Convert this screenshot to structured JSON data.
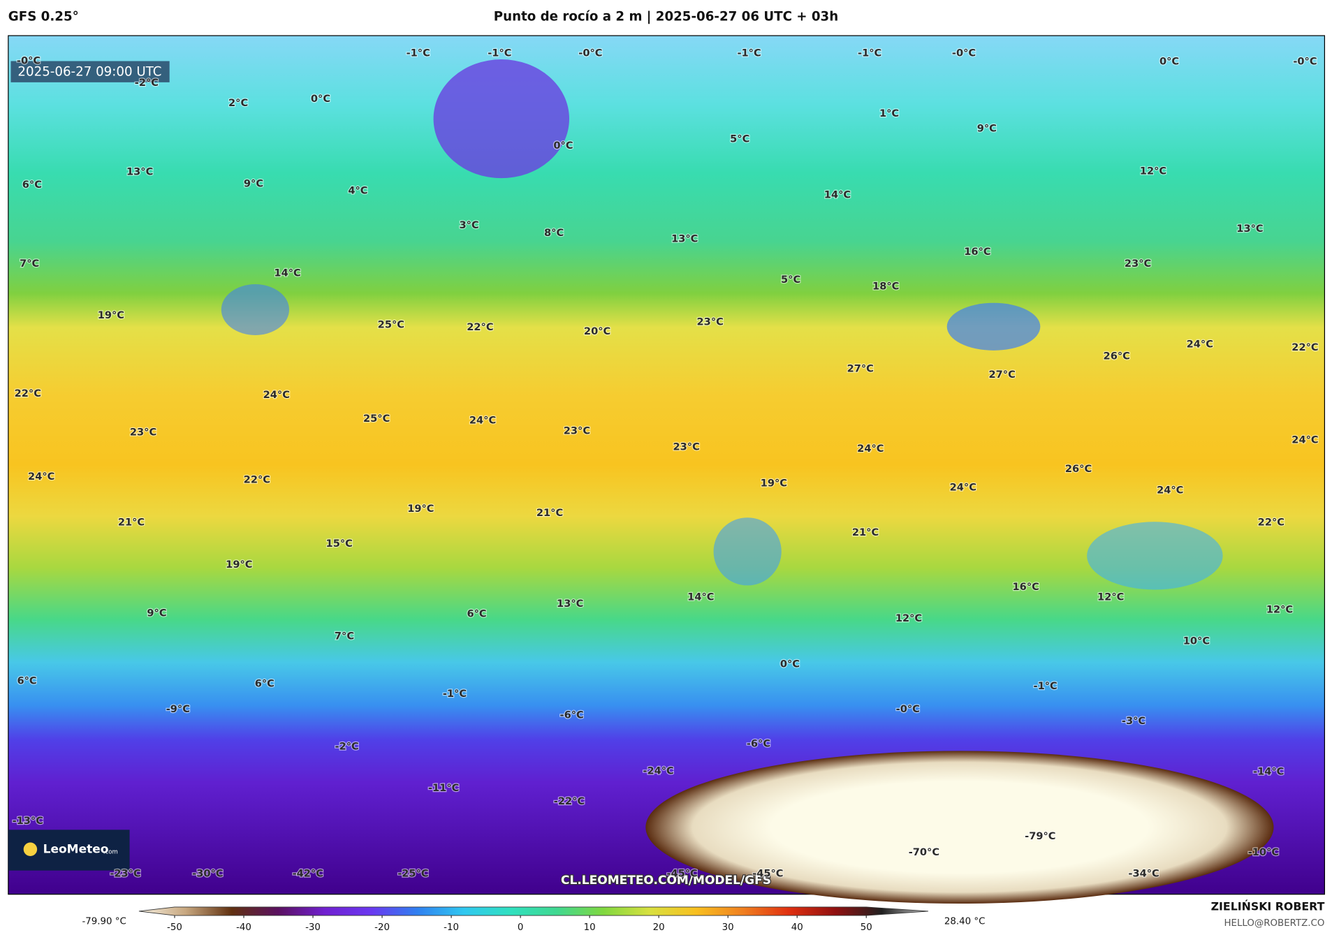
{
  "header": {
    "model": "GFS 0.25°",
    "title": "Punto de rocío a 2 m | 2025-06-27 06 UTC + 03h"
  },
  "map": {
    "timestamp": "2025-06-27 09:00 UTC",
    "watermark": "CL.LEOMETEO.COM/MODEL/GFS",
    "logo": "LeoMeteo",
    "logo_suffix": ".com",
    "labels": [
      "-0°C",
      "-1°C",
      "-1°C",
      "-0°C",
      "-1°C",
      "-1°C",
      "-0°C",
      "0°C",
      "-0°C",
      "-2°C",
      "2°C",
      "0°C",
      "1°C",
      "9°C",
      "5°C",
      "0°C",
      "13°C",
      "9°C",
      "6°C",
      "4°C",
      "14°C",
      "12°C",
      "3°C",
      "8°C",
      "13°C",
      "13°C",
      "16°C",
      "7°C",
      "14°C",
      "5°C",
      "18°C",
      "23°C",
      "19°C",
      "25°C",
      "22°C",
      "20°C",
      "23°C",
      "24°C",
      "22°C",
      "26°C",
      "27°C",
      "27°C",
      "22°C",
      "24°C",
      "25°C",
      "24°C",
      "23°C",
      "23°C",
      "23°C",
      "24°C",
      "24°C",
      "26°C",
      "24°C",
      "22°C",
      "19°C",
      "24°C",
      "24°C",
      "21°C",
      "19°C",
      "21°C",
      "22°C",
      "21°C",
      "15°C",
      "19°C",
      "16°C",
      "14°C",
      "13°C",
      "12°C",
      "9°C",
      "6°C",
      "12°C",
      "12°C",
      "7°C",
      "10°C",
      "0°C",
      "6°C",
      "6°C",
      "-1°C",
      "-1°C",
      "-9°C",
      "-0°C",
      "-6°C",
      "-3°C",
      "-2°C",
      "-6°C",
      "-24°C",
      "-14°C",
      "-11°C",
      "-22°C",
      "-13°C",
      "-79°C",
      "-70°C",
      "-10°C",
      "-23°C",
      "-30°C",
      "-42°C",
      "-25°C",
      "-45°C",
      "-45°C",
      "-34°C"
    ]
  },
  "colorbar": {
    "min_label": "-79.90 °C",
    "max_label": "28.40 °C",
    "ticks": [
      -50,
      -40,
      -30,
      -20,
      -10,
      0,
      10,
      20,
      30,
      40,
      50
    ],
    "colors": [
      "#f5efe0",
      "#c8a880",
      "#603010",
      "#5a1060",
      "#7020d0",
      "#6a38f0",
      "#3080f0",
      "#30c8f0",
      "#30e0c0",
      "#40d890",
      "#80d840",
      "#d8e040",
      "#f8c020",
      "#f08020",
      "#e03010",
      "#901010",
      "#202020",
      "#c8c8c8"
    ]
  },
  "footer": {
    "author": "ZIELIŃSKI ROBERT",
    "email": "HELLO@ROBERTZ.CO"
  }
}
